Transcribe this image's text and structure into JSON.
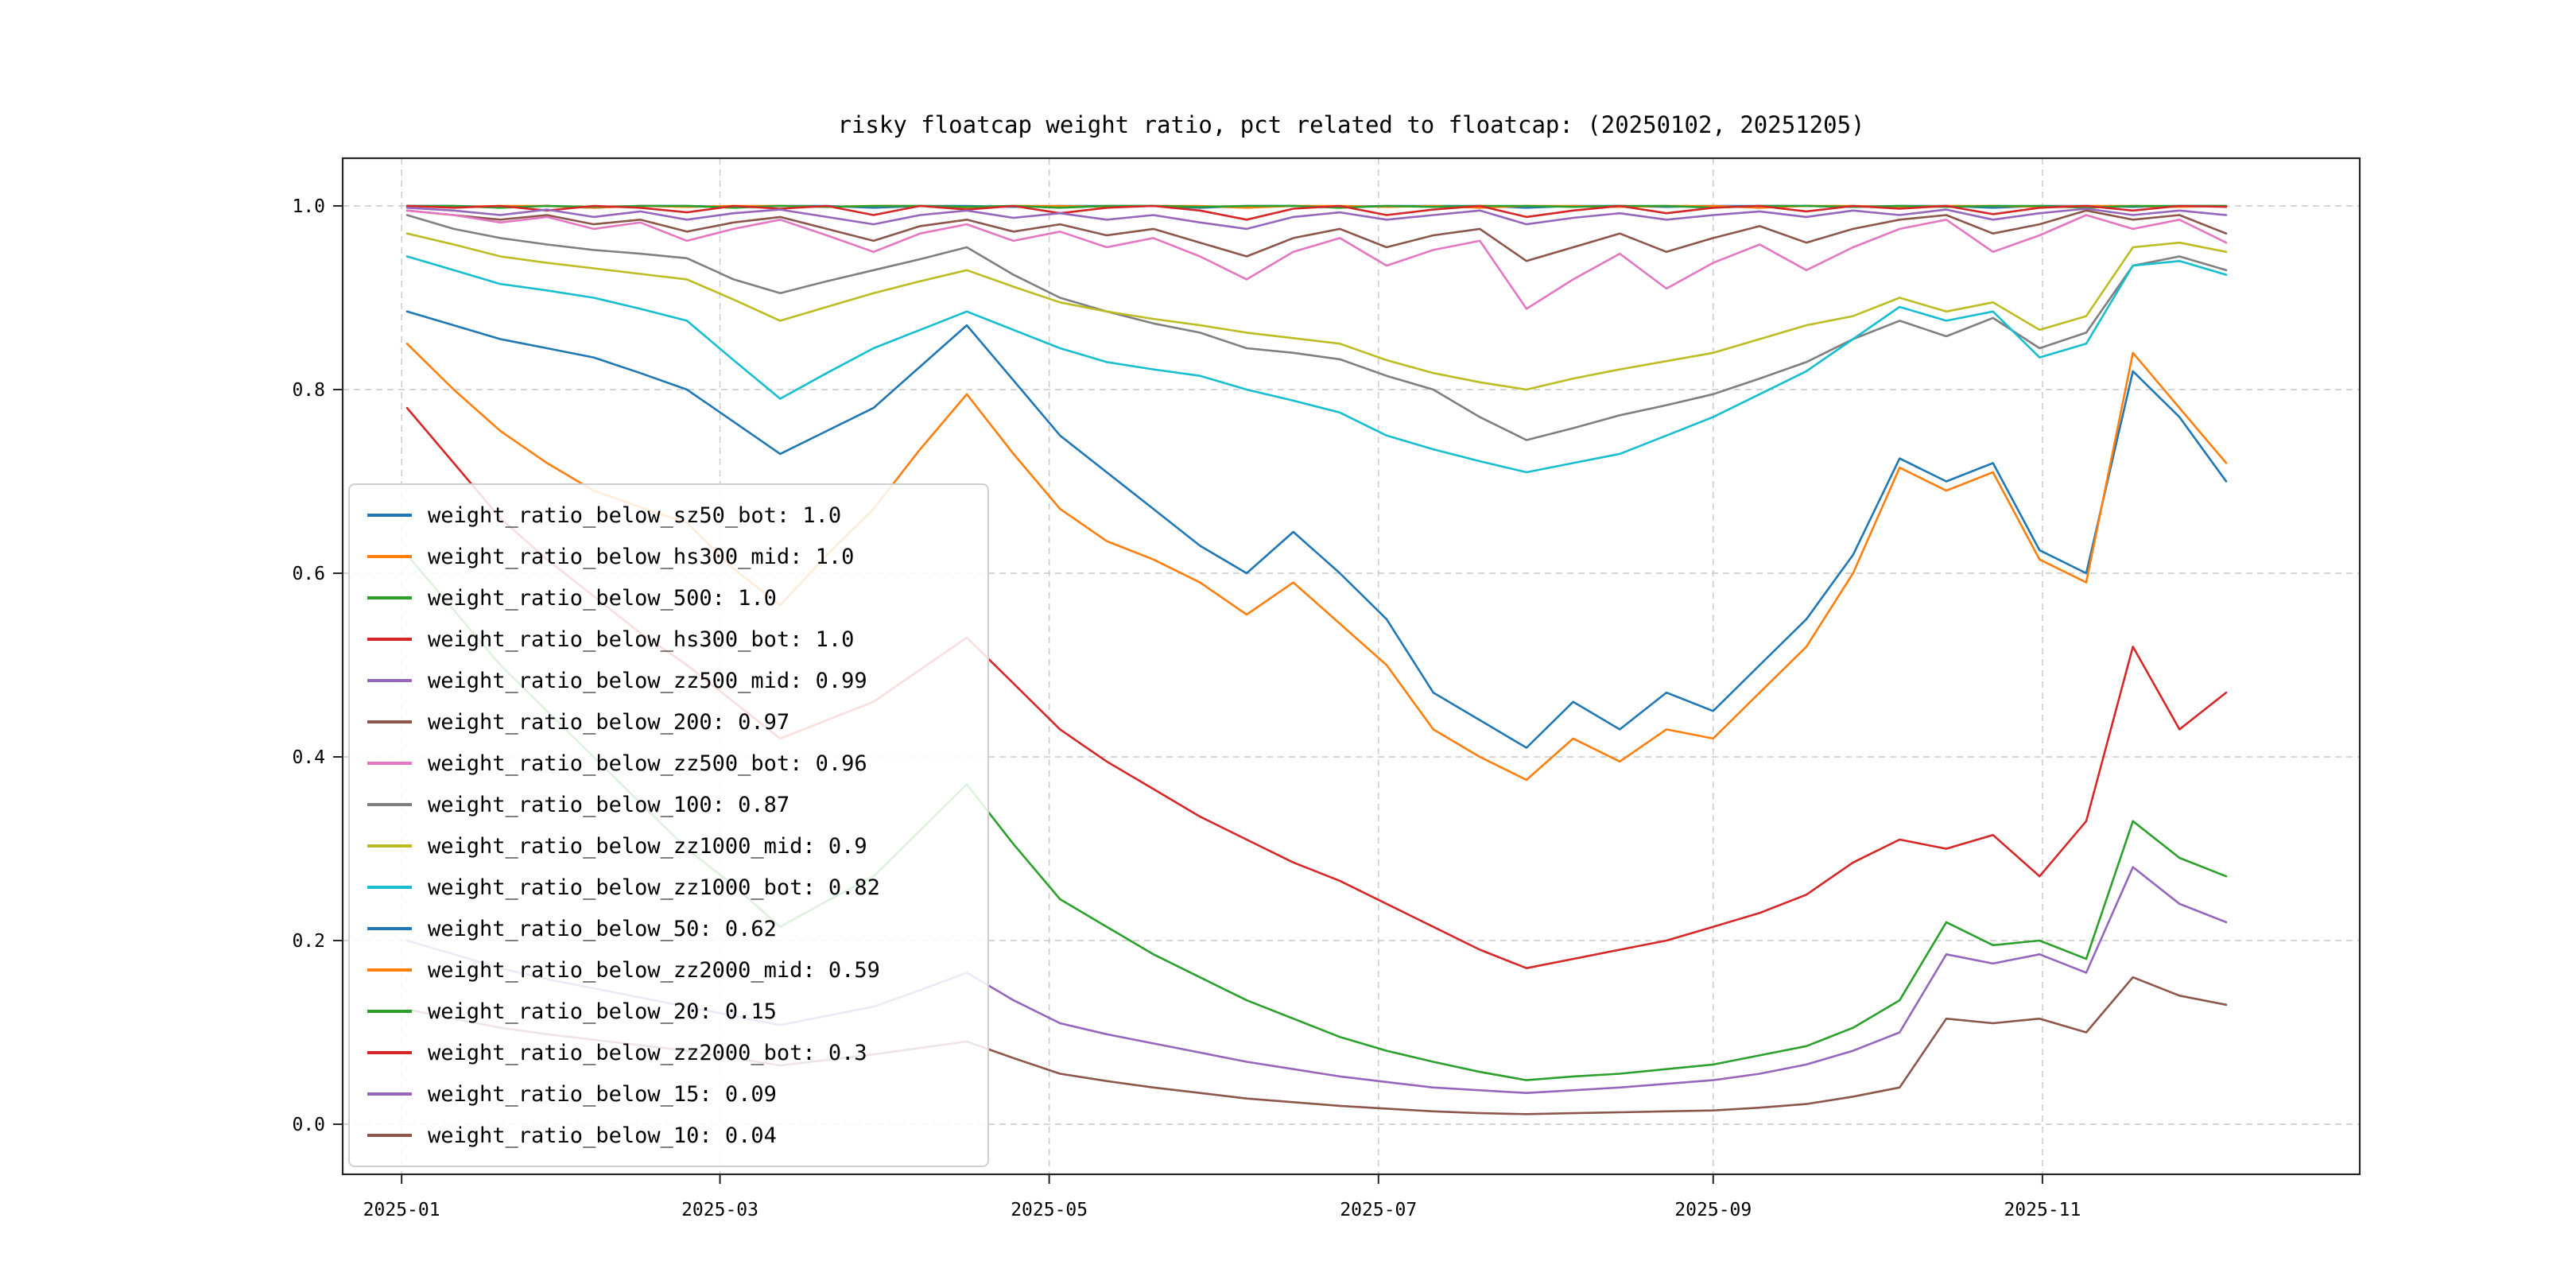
{
  "figure": {
    "background": "#ffffff"
  },
  "chart_data": {
    "type": "line",
    "title": "risky floatcap weight ratio, pct related to floatcap: (20250102, 20251205)",
    "x_tick_labels": [
      "2025-01",
      "2025-03",
      "2025-05",
      "2025-07",
      "2025-09",
      "2025-11"
    ],
    "x_tick_positions_t": [
      -0.003,
      0.172,
      0.353,
      0.534,
      0.718,
      0.899
    ],
    "y_tick_labels": [
      "0.0",
      "0.2",
      "0.4",
      "0.6",
      "0.8",
      "1.0"
    ],
    "y_tick_values": [
      0.0,
      0.2,
      0.4,
      0.6,
      0.8,
      1.0
    ],
    "ylim": [
      -0.05,
      1.05
    ],
    "grid": {
      "style": "dashed",
      "color": "#c9c9c9"
    },
    "axis_color": "#262626",
    "legend_position": "center-left",
    "series": [
      {
        "name": "weight_ratio_below_sz50_bot",
        "label": "weight_ratio_below_sz50_bot: 1.0",
        "color": "#1f77b4",
        "values": [
          1.0,
          1.0,
          0.999,
          1.0,
          0.998,
          1.0,
          1.0,
          0.999,
          1.0,
          1.0,
          0.998,
          1.0,
          1.0,
          0.999,
          1.0,
          1.0,
          1.0,
          0.998,
          1.0,
          1.0,
          0.999,
          1.0,
          1.0,
          1.0,
          0.998,
          1.0,
          1.0,
          0.999,
          1.0,
          1.0,
          1.0,
          0.999,
          1.0,
          1.0,
          0.998,
          1.0,
          1.0,
          0.999,
          1.0,
          1.0
        ]
      },
      {
        "name": "weight_ratio_below_hs300_mid",
        "label": "weight_ratio_below_hs300_mid: 1.0",
        "color": "#ff7f0e",
        "values": [
          1.0,
          0.999,
          1.0,
          1.0,
          0.998,
          1.0,
          0.999,
          1.0,
          1.0,
          0.999,
          1.0,
          1.0,
          0.997,
          1.0,
          1.0,
          0.999,
          1.0,
          1.0,
          0.998,
          1.0,
          1.0,
          0.999,
          1.0,
          0.998,
          1.0,
          1.0,
          0.999,
          1.0,
          1.0,
          0.998,
          1.0,
          1.0,
          0.999,
          1.0,
          1.0,
          0.999,
          1.0,
          1.0,
          0.999,
          1.0
        ]
      },
      {
        "name": "weight_ratio_below_500",
        "label": "weight_ratio_below_500: 1.0",
        "color": "#2ca02c",
        "values": [
          1.0,
          1.0,
          0.998,
          1.0,
          0.999,
          1.0,
          1.0,
          0.998,
          1.0,
          0.999,
          1.0,
          1.0,
          0.999,
          1.0,
          0.998,
          1.0,
          1.0,
          0.999,
          1.0,
          1.0,
          0.998,
          1.0,
          0.999,
          1.0,
          1.0,
          0.999,
          1.0,
          1.0,
          0.998,
          1.0,
          1.0,
          0.999,
          1.0,
          0.999,
          1.0,
          1.0,
          0.998,
          1.0,
          1.0,
          1.0
        ]
      },
      {
        "name": "weight_ratio_below_hs300_bot",
        "label": "weight_ratio_below_hs300_bot: 1.0",
        "color": "#d62728",
        "values": [
          1.0,
          0.998,
          1.0,
          0.995,
          1.0,
          0.998,
          0.993,
          1.0,
          0.997,
          1.0,
          0.99,
          1.0,
          0.996,
          1.0,
          0.992,
          0.998,
          1.0,
          0.995,
          0.985,
          0.997,
          1.0,
          0.99,
          0.996,
          1.0,
          0.988,
          0.995,
          1.0,
          0.992,
          0.998,
          1.0,
          0.994,
          1.0,
          0.997,
          1.0,
          0.991,
          0.998,
          1.0,
          0.995,
          1.0,
          0.999
        ]
      },
      {
        "name": "weight_ratio_below_zz500_mid",
        "label": "weight_ratio_below_zz500_mid: 0.99",
        "color": "#9467bd",
        "values": [
          0.998,
          0.995,
          0.99,
          0.996,
          0.988,
          0.994,
          0.985,
          0.992,
          0.996,
          0.988,
          0.98,
          0.99,
          0.995,
          0.987,
          0.992,
          0.985,
          0.99,
          0.982,
          0.975,
          0.988,
          0.993,
          0.985,
          0.99,
          0.995,
          0.98,
          0.987,
          0.992,
          0.985,
          0.99,
          0.994,
          0.988,
          0.995,
          0.99,
          0.996,
          0.985,
          0.992,
          0.997,
          0.99,
          0.995,
          0.99
        ]
      },
      {
        "name": "weight_ratio_below_200",
        "label": "weight_ratio_below_200: 0.97",
        "color": "#8c564b",
        "values": [
          0.995,
          0.99,
          0.985,
          0.99,
          0.98,
          0.985,
          0.972,
          0.982,
          0.988,
          0.975,
          0.962,
          0.978,
          0.985,
          0.972,
          0.98,
          0.968,
          0.975,
          0.96,
          0.945,
          0.965,
          0.975,
          0.955,
          0.968,
          0.975,
          0.94,
          0.955,
          0.97,
          0.95,
          0.965,
          0.978,
          0.96,
          0.975,
          0.985,
          0.99,
          0.97,
          0.98,
          0.995,
          0.985,
          0.99,
          0.97
        ]
      },
      {
        "name": "weight_ratio_below_zz500_bot",
        "label": "weight_ratio_below_zz500_bot: 0.96",
        "color": "#e377c2",
        "values": [
          0.995,
          0.99,
          0.982,
          0.988,
          0.975,
          0.982,
          0.962,
          0.975,
          0.985,
          0.968,
          0.95,
          0.97,
          0.98,
          0.962,
          0.972,
          0.955,
          0.965,
          0.945,
          0.92,
          0.95,
          0.965,
          0.935,
          0.952,
          0.962,
          0.888,
          0.92,
          0.948,
          0.91,
          0.938,
          0.958,
          0.93,
          0.955,
          0.975,
          0.985,
          0.95,
          0.968,
          0.99,
          0.975,
          0.985,
          0.96
        ]
      },
      {
        "name": "weight_ratio_below_100",
        "label": "weight_ratio_below_100: 0.87",
        "color": "#7f7f7f",
        "values": [
          0.99,
          0.975,
          0.965,
          0.958,
          0.952,
          0.948,
          0.943,
          0.92,
          0.905,
          0.918,
          0.93,
          0.942,
          0.955,
          0.925,
          0.9,
          0.885,
          0.872,
          0.862,
          0.845,
          0.84,
          0.833,
          0.815,
          0.8,
          0.77,
          0.745,
          0.758,
          0.772,
          0.783,
          0.795,
          0.812,
          0.83,
          0.855,
          0.875,
          0.858,
          0.878,
          0.845,
          0.862,
          0.935,
          0.945,
          0.93
        ]
      },
      {
        "name": "weight_ratio_below_zz1000_mid",
        "label": "weight_ratio_below_zz1000_mid: 0.9",
        "color": "#bcbd22",
        "values": [
          0.97,
          0.958,
          0.945,
          0.938,
          0.932,
          0.926,
          0.92,
          0.898,
          0.875,
          0.89,
          0.905,
          0.918,
          0.93,
          0.912,
          0.895,
          0.885,
          0.877,
          0.87,
          0.862,
          0.856,
          0.85,
          0.832,
          0.818,
          0.808,
          0.8,
          0.812,
          0.822,
          0.831,
          0.84,
          0.855,
          0.87,
          0.88,
          0.9,
          0.885,
          0.895,
          0.865,
          0.88,
          0.955,
          0.96,
          0.95
        ]
      },
      {
        "name": "weight_ratio_below_zz1000_bot",
        "label": "weight_ratio_below_zz1000_bot: 0.82",
        "color": "#17becf",
        "values": [
          0.945,
          0.93,
          0.915,
          0.908,
          0.9,
          0.888,
          0.875,
          0.832,
          0.79,
          0.818,
          0.845,
          0.865,
          0.885,
          0.865,
          0.845,
          0.83,
          0.822,
          0.815,
          0.8,
          0.788,
          0.775,
          0.75,
          0.735,
          0.722,
          0.71,
          0.72,
          0.73,
          0.75,
          0.77,
          0.795,
          0.82,
          0.855,
          0.89,
          0.875,
          0.885,
          0.835,
          0.85,
          0.935,
          0.94,
          0.925
        ]
      },
      {
        "name": "weight_ratio_below_50",
        "label": "weight_ratio_below_50: 0.62",
        "color": "#1f77b4",
        "values": [
          0.885,
          0.87,
          0.855,
          0.845,
          0.835,
          0.818,
          0.8,
          0.765,
          0.73,
          0.755,
          0.78,
          0.825,
          0.87,
          0.81,
          0.75,
          0.71,
          0.67,
          0.63,
          0.6,
          0.645,
          0.6,
          0.55,
          0.47,
          0.44,
          0.41,
          0.46,
          0.43,
          0.47,
          0.45,
          0.5,
          0.55,
          0.62,
          0.725,
          0.7,
          0.72,
          0.625,
          0.6,
          0.82,
          0.77,
          0.7
        ]
      },
      {
        "name": "weight_ratio_below_zz2000_mid",
        "label": "weight_ratio_below_zz2000_mid: 0.59",
        "color": "#ff7f0e",
        "values": [
          0.85,
          0.8,
          0.755,
          0.72,
          0.69,
          0.672,
          0.655,
          0.605,
          0.565,
          0.62,
          0.67,
          0.735,
          0.795,
          0.73,
          0.67,
          0.635,
          0.615,
          0.59,
          0.555,
          0.59,
          0.545,
          0.5,
          0.43,
          0.4,
          0.375,
          0.42,
          0.395,
          0.43,
          0.42,
          0.47,
          0.52,
          0.6,
          0.715,
          0.69,
          0.71,
          0.615,
          0.59,
          0.84,
          0.78,
          0.72
        ]
      },
      {
        "name": "weight_ratio_below_20",
        "label": "weight_ratio_below_20: 0.15",
        "color": "#2ca02c",
        "values": [
          0.62,
          0.56,
          0.5,
          0.45,
          0.4,
          0.35,
          0.3,
          0.26,
          0.215,
          0.243,
          0.27,
          0.32,
          0.37,
          0.305,
          0.245,
          0.215,
          0.185,
          0.16,
          0.135,
          0.115,
          0.095,
          0.08,
          0.068,
          0.057,
          0.048,
          0.052,
          0.055,
          0.06,
          0.065,
          0.075,
          0.085,
          0.105,
          0.135,
          0.22,
          0.195,
          0.2,
          0.18,
          0.33,
          0.29,
          0.27
        ]
      },
      {
        "name": "weight_ratio_below_zz2000_bot",
        "label": "weight_ratio_below_zz2000_bot: 0.3",
        "color": "#d62728",
        "values": [
          0.78,
          0.72,
          0.66,
          0.615,
          0.575,
          0.535,
          0.5,
          0.46,
          0.42,
          0.44,
          0.46,
          0.495,
          0.53,
          0.48,
          0.43,
          0.395,
          0.365,
          0.335,
          0.31,
          0.285,
          0.265,
          0.24,
          0.215,
          0.19,
          0.17,
          0.18,
          0.19,
          0.2,
          0.215,
          0.23,
          0.25,
          0.285,
          0.31,
          0.3,
          0.315,
          0.27,
          0.33,
          0.52,
          0.43,
          0.47
        ]
      },
      {
        "name": "weight_ratio_below_15",
        "label": "weight_ratio_below_15: 0.09",
        "color": "#9467bd",
        "values": [
          0.2,
          0.185,
          0.17,
          0.158,
          0.148,
          0.138,
          0.128,
          0.118,
          0.108,
          0.118,
          0.128,
          0.146,
          0.165,
          0.135,
          0.11,
          0.098,
          0.088,
          0.078,
          0.068,
          0.06,
          0.052,
          0.046,
          0.04,
          0.037,
          0.034,
          0.037,
          0.04,
          0.044,
          0.048,
          0.055,
          0.065,
          0.08,
          0.1,
          0.185,
          0.175,
          0.185,
          0.165,
          0.28,
          0.24,
          0.22
        ]
      },
      {
        "name": "weight_ratio_below_10",
        "label": "weight_ratio_below_10: 0.04",
        "color": "#8c564b",
        "values": [
          0.125,
          0.115,
          0.105,
          0.098,
          0.092,
          0.086,
          0.08,
          0.072,
          0.064,
          0.07,
          0.076,
          0.083,
          0.09,
          0.072,
          0.055,
          0.047,
          0.04,
          0.034,
          0.028,
          0.024,
          0.02,
          0.017,
          0.014,
          0.012,
          0.011,
          0.012,
          0.013,
          0.014,
          0.015,
          0.018,
          0.022,
          0.03,
          0.04,
          0.115,
          0.11,
          0.115,
          0.1,
          0.16,
          0.14,
          0.13
        ]
      }
    ]
  }
}
